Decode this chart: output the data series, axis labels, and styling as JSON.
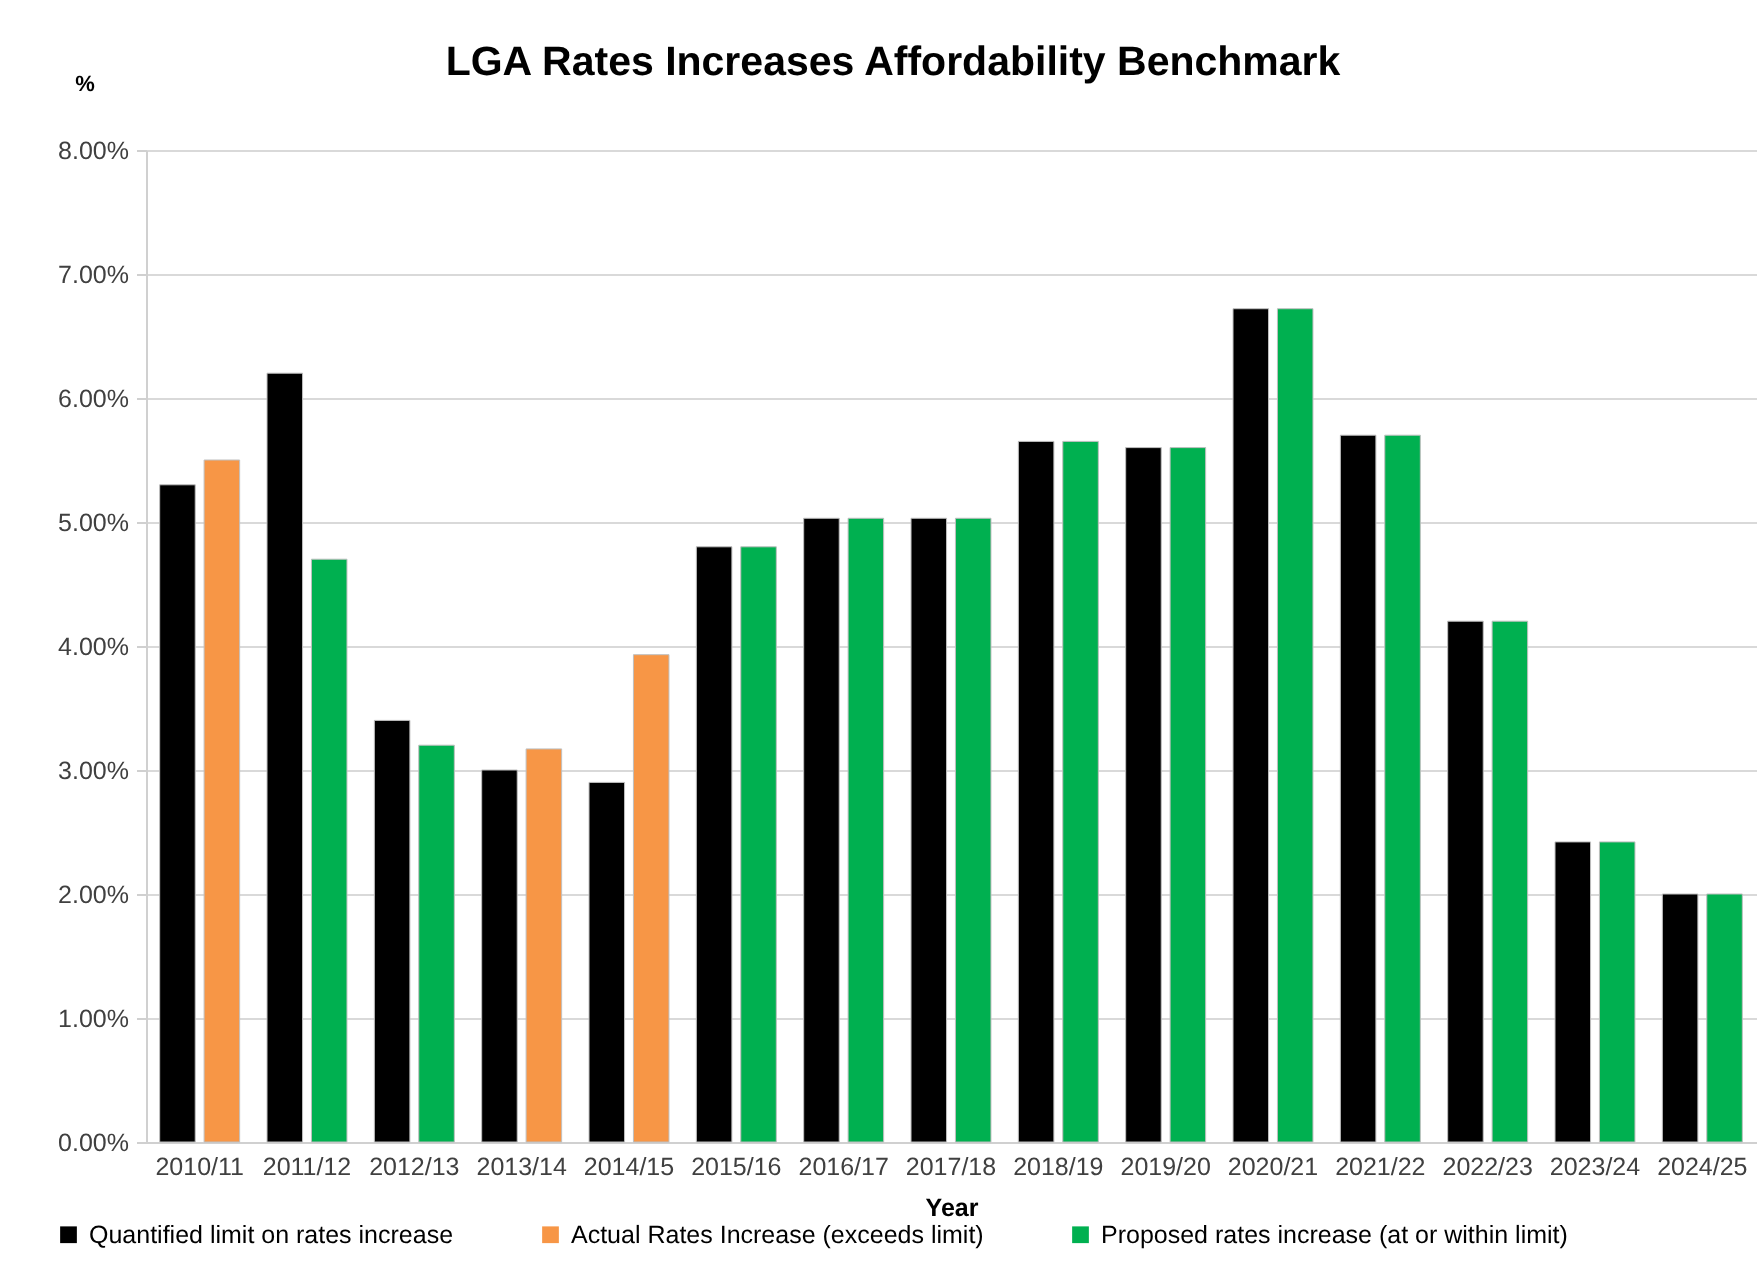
{
  "chart_data": {
    "type": "bar",
    "title": "LGA Rates Increases Affordability Benchmark",
    "xlabel": "Year",
    "ylabel": "%",
    "categories": [
      "2010/11",
      "2011/12",
      "2012/13",
      "2013/14",
      "2014/15",
      "2015/16",
      "2016/17",
      "2017/18",
      "2018/19",
      "2019/20",
      "2020/21",
      "2021/22",
      "2022/23",
      "2023/24",
      "2024/25"
    ],
    "series": [
      {
        "name": "Quantified limit on rates increase",
        "color": "#000000",
        "values": [
          5.3,
          6.2,
          3.4,
          3.0,
          2.9,
          4.8,
          5.03,
          5.03,
          5.65,
          5.6,
          6.72,
          5.7,
          4.2,
          2.42,
          2.0
        ]
      },
      {
        "name": "Actual Rates Increase (exceeds limit)",
        "color": "#f79646",
        "values": [
          5.5,
          null,
          null,
          3.17,
          3.93,
          null,
          null,
          null,
          null,
          null,
          null,
          null,
          null,
          null,
          null
        ]
      },
      {
        "name": "Proposed rates increase (at or within limit)",
        "color": "#00b050",
        "values": [
          null,
          4.7,
          3.2,
          null,
          null,
          4.8,
          5.03,
          5.03,
          5.65,
          5.6,
          6.72,
          5.7,
          4.2,
          2.42,
          2.0
        ]
      }
    ],
    "ylim": [
      0,
      8
    ],
    "yticks": [
      {
        "value": 0,
        "label": "0.00%"
      },
      {
        "value": 1,
        "label": "1.00%"
      },
      {
        "value": 2,
        "label": "2.00%"
      },
      {
        "value": 3,
        "label": "3.00%"
      },
      {
        "value": 4,
        "label": "4.00%"
      },
      {
        "value": 5,
        "label": "5.00%"
      },
      {
        "value": 6,
        "label": "6.00%"
      },
      {
        "value": 7,
        "label": "7.00%"
      },
      {
        "value": 8,
        "label": "8.00%"
      }
    ],
    "grid": "y",
    "legend": "bottom"
  }
}
